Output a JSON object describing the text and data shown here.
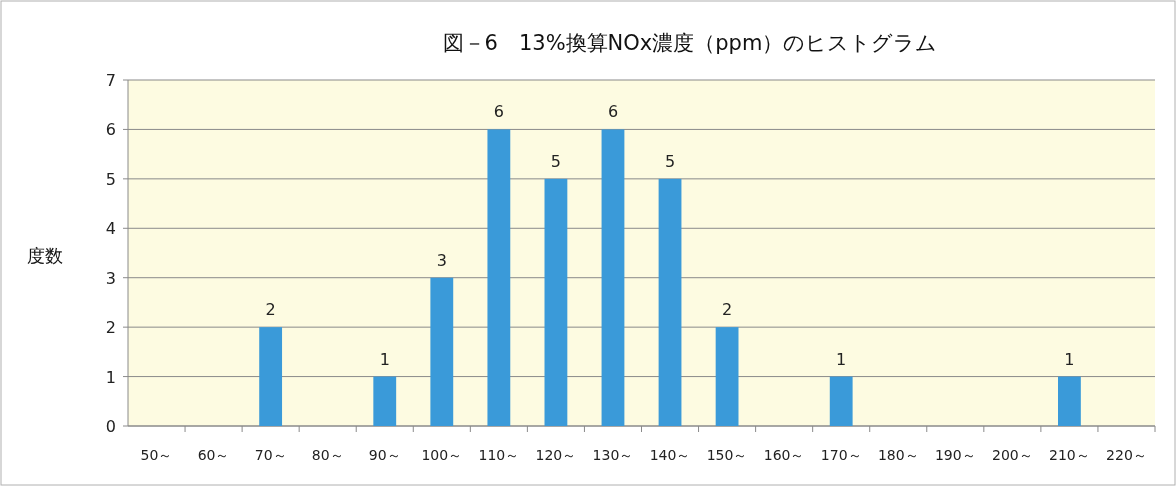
{
  "chart_data": {
    "type": "bar",
    "title": "図－6　13%換算NOx濃度（ppm）のヒストグラム",
    "ylabel": "度数",
    "categories": [
      "50～",
      "60～",
      "70～",
      "80～",
      "90～",
      "100～",
      "110～",
      "120～",
      "130～",
      "140～",
      "150～",
      "160～",
      "170～",
      "180～",
      "190～",
      "200～",
      "210～",
      "220～"
    ],
    "values": [
      0,
      0,
      2,
      0,
      1,
      3,
      6,
      5,
      6,
      5,
      2,
      0,
      1,
      0,
      0,
      0,
      1,
      0
    ],
    "value_labels": [
      null,
      null,
      "2",
      null,
      "1",
      "3",
      "6",
      "5",
      "6",
      "5",
      "2",
      null,
      "1",
      null,
      null,
      null,
      "1",
      null
    ],
    "color": "#3a9ad9",
    "ylim": [
      0,
      7
    ],
    "yticks": [
      0,
      1,
      2,
      3,
      4,
      5,
      6,
      7
    ],
    "grid": "y"
  }
}
